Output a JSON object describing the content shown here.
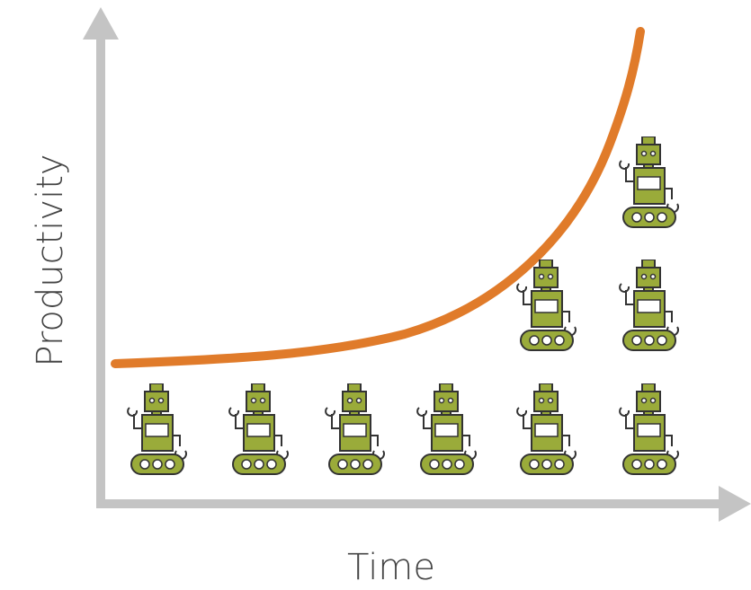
{
  "diagram": {
    "y_label": "Productivity",
    "x_label": "Time"
  }
}
